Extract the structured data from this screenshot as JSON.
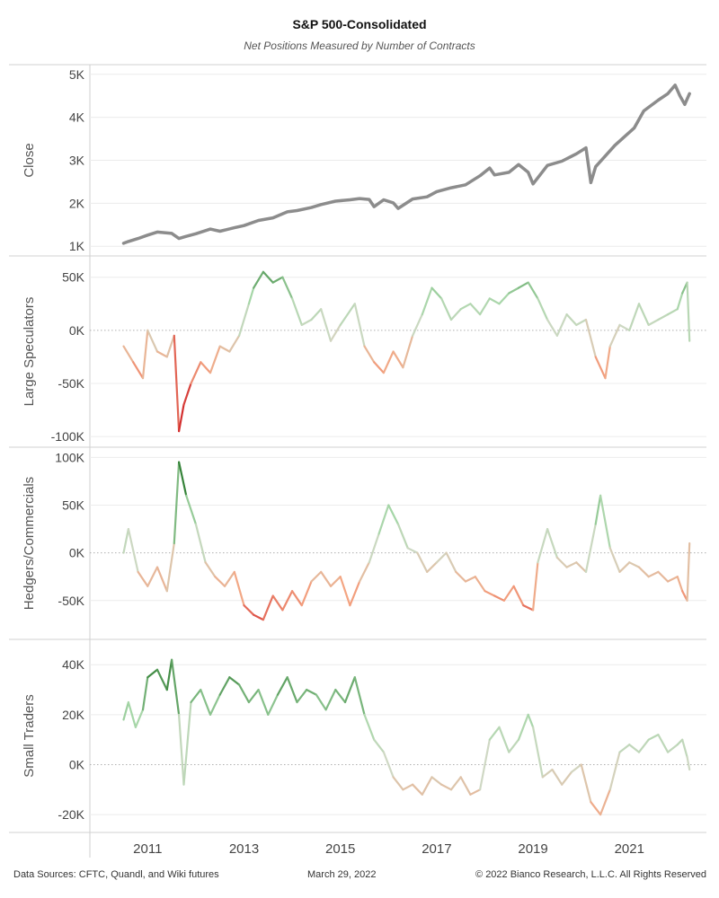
{
  "header": {
    "title": "S&P 500-Consolidated",
    "subtitle": "Net Positions Measured by Number of Contracts"
  },
  "footer": {
    "sources": "Data Sources: CFTC, Quandl, and Wiki futures",
    "date": "March 29, 2022",
    "copyright": "© 2022 Bianco Research, L.L.C. All Rights Reserved"
  },
  "colors": {
    "close_line": "#8c8c8c",
    "positive_dark": "#2e7d32",
    "positive_light": "#a5d6a7",
    "neutral": "#cfd8c4",
    "negative_light": "#f4a582",
    "negative_dark": "#d32f2f",
    "grid": "#ececec",
    "zero_line": "#b0b0b0"
  },
  "chart_data": {
    "type": "line",
    "x_axis": {
      "ticks": [
        "2011",
        "2013",
        "2015",
        "2017",
        "2019",
        "2021"
      ],
      "tick_values": [
        2011,
        2013,
        2015,
        2017,
        2019,
        2021
      ],
      "range": [
        2009.8,
        2022.6
      ]
    },
    "panels": [
      {
        "name": "Close",
        "ylabel": "Close",
        "ylim": [
          900,
          5100
        ],
        "ticks": [
          1000,
          2000,
          3000,
          4000,
          5000
        ],
        "tick_labels": [
          "1K",
          "2K",
          "3K",
          "4K",
          "5K"
        ],
        "color_mode": "solid",
        "x": [
          2010.5,
          2010.6,
          2010.8,
          2011.0,
          2011.2,
          2011.5,
          2011.65,
          2011.8,
          2012.0,
          2012.3,
          2012.5,
          2012.8,
          2013.0,
          2013.3,
          2013.6,
          2013.9,
          2014.1,
          2014.4,
          2014.6,
          2014.9,
          2015.2,
          2015.4,
          2015.6,
          2015.7,
          2015.9,
          2016.1,
          2016.2,
          2016.5,
          2016.8,
          2017.0,
          2017.3,
          2017.6,
          2017.9,
          2018.1,
          2018.2,
          2018.5,
          2018.7,
          2018.9,
          2019.0,
          2019.3,
          2019.6,
          2019.9,
          2020.1,
          2020.2,
          2020.3,
          2020.5,
          2020.7,
          2020.9,
          2021.1,
          2021.3,
          2021.6,
          2021.8,
          2021.95,
          2022.05,
          2022.15,
          2022.25
        ],
        "values": [
          1070,
          1110,
          1180,
          1260,
          1330,
          1300,
          1180,
          1230,
          1290,
          1400,
          1350,
          1430,
          1480,
          1600,
          1660,
          1800,
          1830,
          1900,
          1970,
          2050,
          2080,
          2110,
          2090,
          1920,
          2080,
          2010,
          1880,
          2100,
          2150,
          2270,
          2360,
          2430,
          2640,
          2820,
          2660,
          2720,
          2900,
          2720,
          2450,
          2880,
          2980,
          3150,
          3290,
          2480,
          2850,
          3100,
          3350,
          3550,
          3750,
          4150,
          4400,
          4550,
          4750,
          4500,
          4300,
          4550
        ]
      },
      {
        "name": "Large Speculators",
        "ylabel": "Large Speculators",
        "ylim": [
          -105000,
          65000
        ],
        "ticks": [
          -100000,
          -50000,
          0,
          50000
        ],
        "tick_labels": [
          "-100K",
          "-50K",
          "0K",
          "50K"
        ],
        "color_mode": "diverging",
        "color_range": 65000,
        "x": [
          2010.5,
          2010.7,
          2010.9,
          2011.0,
          2011.2,
          2011.4,
          2011.55,
          2011.65,
          2011.75,
          2011.9,
          2012.1,
          2012.3,
          2012.5,
          2012.7,
          2012.9,
          2013.1,
          2013.2,
          2013.4,
          2013.6,
          2013.8,
          2014.0,
          2014.2,
          2014.4,
          2014.6,
          2014.8,
          2015.0,
          2015.3,
          2015.5,
          2015.7,
          2015.9,
          2016.1,
          2016.3,
          2016.5,
          2016.7,
          2016.9,
          2017.1,
          2017.3,
          2017.5,
          2017.7,
          2017.9,
          2018.1,
          2018.3,
          2018.5,
          2018.7,
          2018.9,
          2019.1,
          2019.3,
          2019.5,
          2019.7,
          2019.9,
          2020.1,
          2020.3,
          2020.5,
          2020.6,
          2020.8,
          2021.0,
          2021.2,
          2021.4,
          2021.6,
          2021.8,
          2022.0,
          2022.1,
          2022.2,
          2022.25
        ],
        "values": [
          -15000,
          -30000,
          -45000,
          0,
          -20000,
          -25000,
          -5000,
          -95000,
          -70000,
          -50000,
          -30000,
          -40000,
          -15000,
          -20000,
          -5000,
          25000,
          40000,
          55000,
          45000,
          50000,
          30000,
          5000,
          10000,
          20000,
          -10000,
          5000,
          25000,
          -15000,
          -30000,
          -40000,
          -20000,
          -35000,
          -5000,
          15000,
          40000,
          30000,
          10000,
          20000,
          25000,
          15000,
          30000,
          25000,
          35000,
          40000,
          45000,
          30000,
          10000,
          -5000,
          15000,
          5000,
          10000,
          -25000,
          -45000,
          -15000,
          5000,
          0,
          25000,
          5000,
          10000,
          15000,
          20000,
          35000,
          45000,
          -10000
        ]
      },
      {
        "name": "Hedgers/Commercials",
        "ylabel": "Hedgers/Commercials",
        "ylim": [
          -85000,
          105000
        ],
        "ticks": [
          -50000,
          0,
          50000,
          100000
        ],
        "tick_labels": [
          "-50K",
          "0K",
          "50K",
          "100K"
        ],
        "color_mode": "diverging",
        "color_range": 80000,
        "x": [
          2010.5,
          2010.6,
          2010.8,
          2011.0,
          2011.2,
          2011.4,
          2011.55,
          2011.65,
          2011.8,
          2012.0,
          2012.2,
          2012.4,
          2012.6,
          2012.8,
          2013.0,
          2013.2,
          2013.4,
          2013.6,
          2013.8,
          2014.0,
          2014.2,
          2014.4,
          2014.6,
          2014.8,
          2015.0,
          2015.2,
          2015.4,
          2015.6,
          2015.8,
          2016.0,
          2016.2,
          2016.4,
          2016.6,
          2016.8,
          2017.0,
          2017.2,
          2017.4,
          2017.6,
          2017.8,
          2018.0,
          2018.2,
          2018.4,
          2018.6,
          2018.8,
          2019.0,
          2019.1,
          2019.3,
          2019.5,
          2019.7,
          2019.9,
          2020.1,
          2020.3,
          2020.4,
          2020.6,
          2020.8,
          2021.0,
          2021.2,
          2021.4,
          2021.6,
          2021.8,
          2022.0,
          2022.1,
          2022.2,
          2022.25
        ],
        "values": [
          0,
          25000,
          -20000,
          -35000,
          -15000,
          -40000,
          10000,
          95000,
          60000,
          30000,
          -10000,
          -25000,
          -35000,
          -20000,
          -55000,
          -65000,
          -70000,
          -45000,
          -60000,
          -40000,
          -55000,
          -30000,
          -20000,
          -35000,
          -25000,
          -55000,
          -30000,
          -10000,
          20000,
          50000,
          30000,
          5000,
          0,
          -20000,
          -10000,
          0,
          -20000,
          -30000,
          -25000,
          -40000,
          -45000,
          -50000,
          -35000,
          -55000,
          -60000,
          -10000,
          25000,
          -5000,
          -15000,
          -10000,
          -20000,
          30000,
          60000,
          5000,
          -20000,
          -10000,
          -15000,
          -25000,
          -20000,
          -30000,
          -25000,
          -40000,
          -50000,
          10000
        ]
      },
      {
        "name": "Small Traders",
        "ylabel": "Small Traders",
        "ylim": [
          -25000,
          48000
        ],
        "ticks": [
          -20000,
          0,
          20000,
          40000
        ],
        "tick_labels": [
          "-20K",
          "0K",
          "20K",
          "40K"
        ],
        "color_mode": "diverging",
        "color_range": 40000,
        "x": [
          2010.5,
          2010.6,
          2010.75,
          2010.9,
          2011.0,
          2011.2,
          2011.4,
          2011.5,
          2011.65,
          2011.75,
          2011.9,
          2012.1,
          2012.3,
          2012.5,
          2012.7,
          2012.9,
          2013.1,
          2013.3,
          2013.5,
          2013.7,
          2013.9,
          2014.1,
          2014.3,
          2014.5,
          2014.7,
          2014.9,
          2015.1,
          2015.3,
          2015.5,
          2015.7,
          2015.9,
          2016.1,
          2016.3,
          2016.5,
          2016.7,
          2016.9,
          2017.1,
          2017.3,
          2017.5,
          2017.7,
          2017.9,
          2018.1,
          2018.3,
          2018.5,
          2018.7,
          2018.9,
          2019.0,
          2019.2,
          2019.4,
          2019.6,
          2019.8,
          2020.0,
          2020.2,
          2020.4,
          2020.6,
          2020.8,
          2021.0,
          2021.2,
          2021.4,
          2021.6,
          2021.8,
          2022.0,
          2022.1,
          2022.2,
          2022.25
        ],
        "values": [
          18000,
          25000,
          15000,
          22000,
          35000,
          38000,
          30000,
          42000,
          20000,
          -8000,
          25000,
          30000,
          20000,
          28000,
          35000,
          32000,
          25000,
          30000,
          20000,
          28000,
          35000,
          25000,
          30000,
          28000,
          22000,
          30000,
          25000,
          35000,
          20000,
          10000,
          5000,
          -5000,
          -10000,
          -8000,
          -12000,
          -5000,
          -8000,
          -10000,
          -5000,
          -12000,
          -10000,
          10000,
          15000,
          5000,
          10000,
          20000,
          15000,
          -5000,
          -2000,
          -8000,
          -3000,
          0,
          -15000,
          -20000,
          -10000,
          5000,
          8000,
          5000,
          10000,
          12000,
          5000,
          8000,
          10000,
          3000,
          -2000
        ]
      }
    ]
  }
}
